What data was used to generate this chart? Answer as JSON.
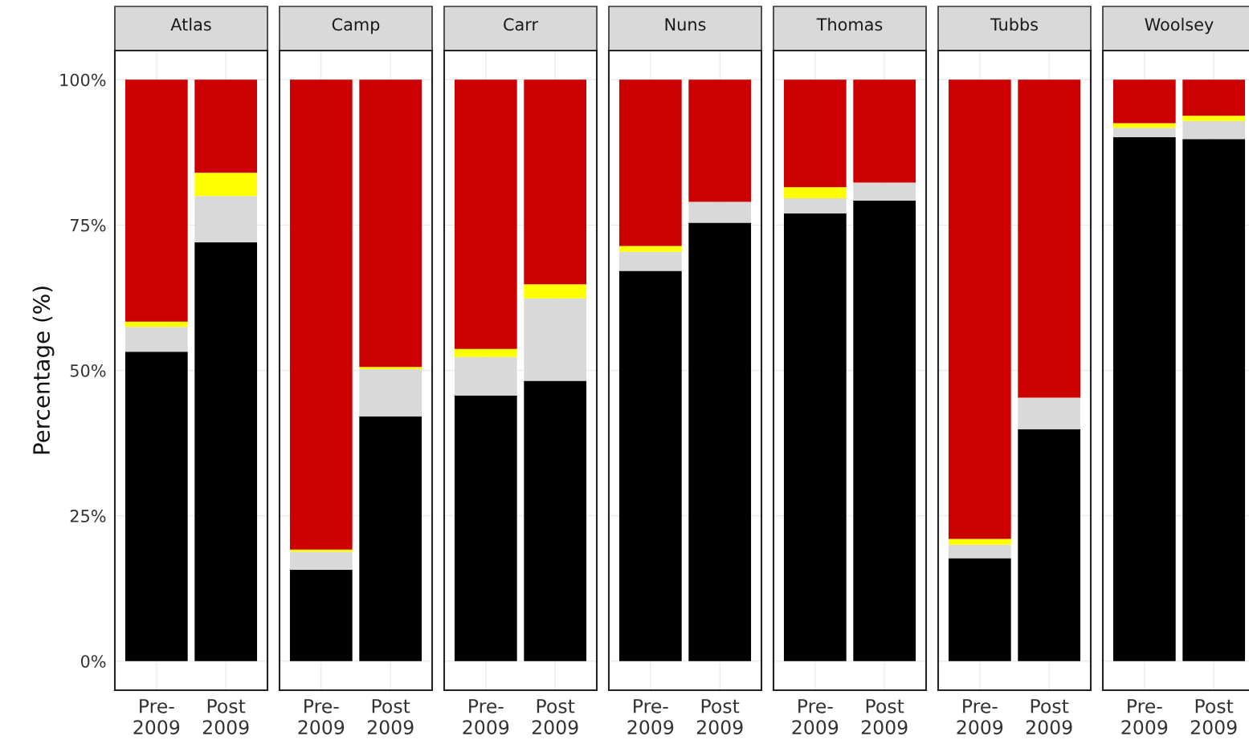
{
  "chart_data": [
    {
      "type": "bar",
      "title": "Atlas",
      "ylabel": "Percentage (%)",
      "stacked": true,
      "grid": true,
      "categories": [
        "Pre-\n2009",
        "Post\n2009"
      ],
      "ylim": [
        -5,
        105
      ],
      "yticks": [
        {
          "value": 0,
          "label": "0%"
        },
        {
          "value": 25,
          "label": "25%"
        },
        {
          "value": 50,
          "label": "50%"
        },
        {
          "value": 75,
          "label": "75%"
        },
        {
          "value": 100,
          "label": "100%"
        }
      ],
      "series": [
        {
          "color": "#000000",
          "values": [
            53.2,
            72.0
          ]
        },
        {
          "color": "#d9d9d9",
          "values": [
            4.3,
            8.0
          ]
        },
        {
          "color": "#ffff00",
          "values": [
            0.9,
            4.0
          ]
        },
        {
          "color": "#cc0000",
          "values": [
            41.6,
            16.0
          ]
        }
      ]
    },
    {
      "type": "bar",
      "title": "Camp",
      "stacked": true,
      "grid": true,
      "tick_labels": "x",
      "categories": [
        "Pre-\n2009",
        "Post\n2009"
      ],
      "ylim": [
        -5,
        105
      ],
      "yticks": [
        {
          "value": 0,
          "label": null
        },
        {
          "value": 25,
          "label": null
        },
        {
          "value": 50,
          "label": null
        },
        {
          "value": 75,
          "label": null
        },
        {
          "value": 100,
          "label": null
        }
      ],
      "series": [
        {
          "color": "#000000",
          "values": [
            15.7,
            42.1
          ]
        },
        {
          "color": "#d9d9d9",
          "values": [
            3.1,
            8.1
          ]
        },
        {
          "color": "#ffff00",
          "values": [
            0.4,
            0.4
          ]
        },
        {
          "color": "#cc0000",
          "values": [
            80.8,
            49.4
          ]
        }
      ]
    },
    {
      "type": "bar",
      "title": "Carr",
      "stacked": true,
      "grid": true,
      "tick_labels": "x",
      "categories": [
        "Pre-\n2009",
        "Post\n2009"
      ],
      "ylim": [
        -5,
        105
      ],
      "yticks": [
        {
          "value": 0,
          "label": null
        },
        {
          "value": 25,
          "label": null
        },
        {
          "value": 50,
          "label": null
        },
        {
          "value": 75,
          "label": null
        },
        {
          "value": 100,
          "label": null
        }
      ],
      "series": [
        {
          "color": "#000000",
          "values": [
            45.7,
            48.2
          ]
        },
        {
          "color": "#d9d9d9",
          "values": [
            6.6,
            14.2
          ]
        },
        {
          "color": "#ffff00",
          "values": [
            1.4,
            2.4
          ]
        },
        {
          "color": "#cc0000",
          "values": [
            46.3,
            35.2
          ]
        }
      ]
    },
    {
      "type": "bar",
      "title": "Nuns",
      "stacked": true,
      "grid": true,
      "tick_labels": "x",
      "categories": [
        "Pre-\n2009",
        "Post\n2009"
      ],
      "ylim": [
        -5,
        105
      ],
      "yticks": [
        {
          "value": 0,
          "label": null
        },
        {
          "value": 25,
          "label": null
        },
        {
          "value": 50,
          "label": null
        },
        {
          "value": 75,
          "label": null
        },
        {
          "value": 100,
          "label": null
        }
      ],
      "series": [
        {
          "color": "#000000",
          "values": [
            67.1,
            75.4
          ]
        },
        {
          "color": "#d9d9d9",
          "values": [
            3.3,
            3.6
          ]
        },
        {
          "color": "#ffff00",
          "values": [
            1.0,
            0
          ]
        },
        {
          "color": "#cc0000",
          "values": [
            28.6,
            21.0
          ]
        }
      ]
    },
    {
      "type": "bar",
      "title": "Thomas",
      "stacked": true,
      "grid": true,
      "tick_labels": "x",
      "categories": [
        "Pre-\n2009",
        "Post\n2009"
      ],
      "ylim": [
        -5,
        105
      ],
      "yticks": [
        {
          "value": 0,
          "label": null
        },
        {
          "value": 25,
          "label": null
        },
        {
          "value": 50,
          "label": null
        },
        {
          "value": 75,
          "label": null
        },
        {
          "value": 100,
          "label": null
        }
      ],
      "series": [
        {
          "color": "#000000",
          "values": [
            77.0,
            79.2
          ]
        },
        {
          "color": "#d9d9d9",
          "values": [
            2.6,
            3.1
          ]
        },
        {
          "color": "#ffff00",
          "values": [
            1.9,
            0
          ]
        },
        {
          "color": "#cc0000",
          "values": [
            18.5,
            17.7
          ]
        }
      ]
    },
    {
      "type": "bar",
      "title": "Tubbs",
      "stacked": true,
      "grid": true,
      "tick_labels": "x",
      "categories": [
        "Pre-\n2009",
        "Post\n2009"
      ],
      "ylim": [
        -5,
        105
      ],
      "yticks": [
        {
          "value": 0,
          "label": null
        },
        {
          "value": 25,
          "label": null
        },
        {
          "value": 50,
          "label": null
        },
        {
          "value": 75,
          "label": null
        },
        {
          "value": 100,
          "label": null
        }
      ],
      "series": [
        {
          "color": "#000000",
          "values": [
            17.7,
            39.9
          ]
        },
        {
          "color": "#d9d9d9",
          "values": [
            2.3,
            5.4
          ]
        },
        {
          "color": "#ffff00",
          "values": [
            1.0,
            0
          ]
        },
        {
          "color": "#cc0000",
          "values": [
            79.0,
            54.7
          ]
        }
      ]
    },
    {
      "type": "bar",
      "title": "Woolsey",
      "stacked": true,
      "grid": true,
      "tick_labels": "x",
      "categories": [
        "Pre-\n2009",
        "Post\n2009"
      ],
      "ylim": [
        -5,
        105
      ],
      "yticks": [
        {
          "value": 0,
          "label": null
        },
        {
          "value": 25,
          "label": null
        },
        {
          "value": 50,
          "label": null
        },
        {
          "value": 75,
          "label": null
        },
        {
          "value": 100,
          "label": null
        }
      ],
      "series": [
        {
          "color": "#000000",
          "values": [
            90.1,
            89.8
          ]
        },
        {
          "color": "#d9d9d9",
          "values": [
            1.6,
            3.1
          ]
        },
        {
          "color": "#ffff00",
          "values": [
            0.8,
            0.9
          ]
        },
        {
          "color": "#cc0000",
          "values": [
            7.5,
            6.2
          ]
        }
      ]
    }
  ]
}
